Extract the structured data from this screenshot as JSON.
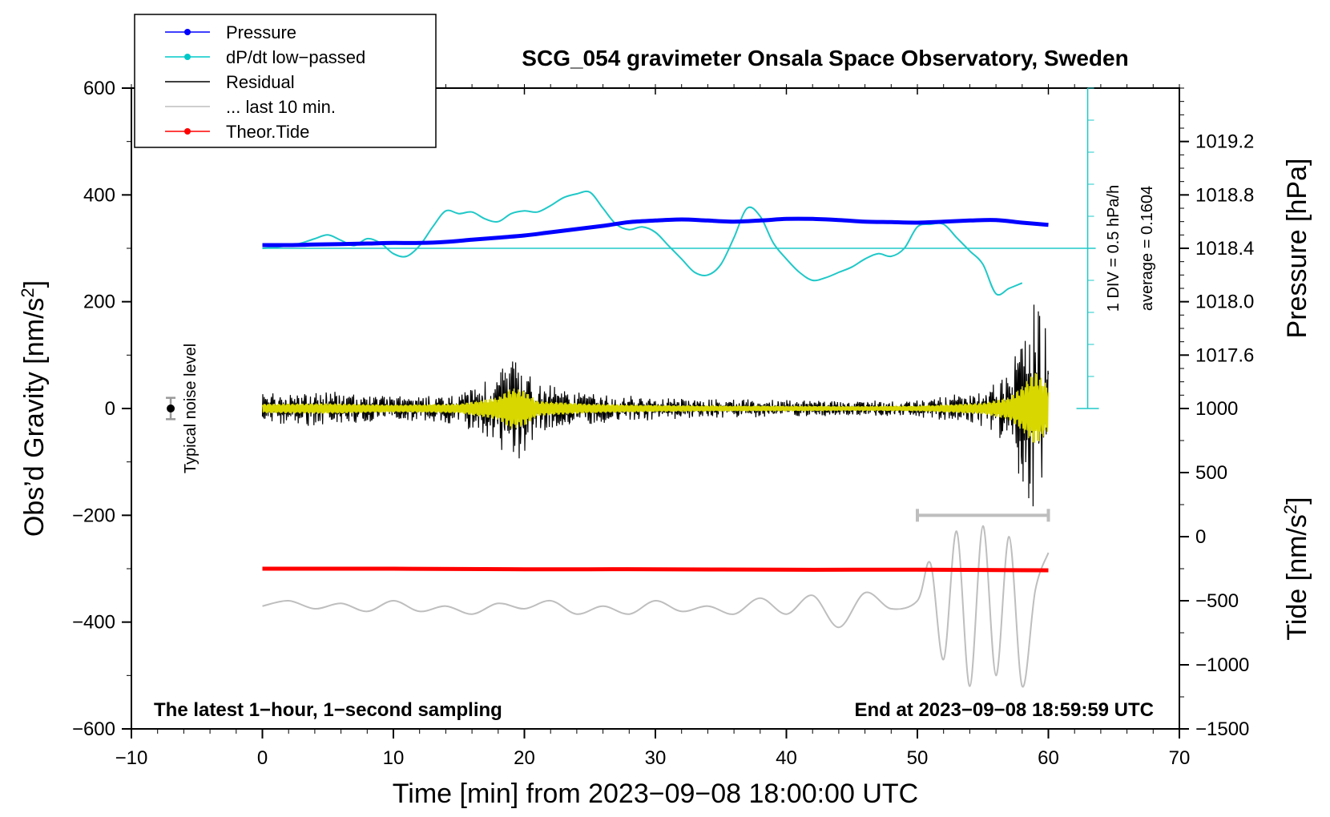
{
  "chart_data": {
    "type": "line",
    "title": "SCG_054 gravimeter Onsala Space Observatory, Sweden",
    "xlabel": "Time [min] from 2023−09−08 18:00:00 UTC",
    "ylabel_left": "Obs’d Gravity [nm/s²]",
    "ylabel_left_text": "Obs’d Gravity [nm/s",
    "ylabel_left_sup": "2",
    "ylabel_left_end": "]",
    "ylabel_pressure": "Pressure [hPa]",
    "ylabel_tide_text": "Tide [nm/s",
    "ylabel_tide_sup": "2",
    "ylabel_tide_end": "]",
    "xlim": [
      -10,
      70
    ],
    "ylim": [
      -600,
      600
    ],
    "x_ticks": [
      -10,
      0,
      10,
      20,
      30,
      40,
      50,
      60,
      70
    ],
    "x_tick_labels": [
      "−10",
      "0",
      "10",
      "20",
      "30",
      "40",
      "50",
      "60",
      "70"
    ],
    "y_ticks": [
      -600,
      -400,
      -200,
      0,
      200,
      400,
      600
    ],
    "y_tick_labels": [
      "−600",
      "−400",
      "−200",
      "0",
      "200",
      "400",
      "600"
    ],
    "pressure_ticks": [
      1017.6,
      1018.0,
      1018.4,
      1018.8,
      1019.2
    ],
    "pressure_tick_labels": [
      "1017.6",
      "1018.0",
      "1018.4",
      "1018.8",
      "1019.2"
    ],
    "pressure_mapping": {
      "value_at_y0": 1017.2,
      "value_at_y600": 1019.6
    },
    "tide_ticks": [
      -1500,
      -1000,
      -500,
      0,
      500,
      1000
    ],
    "tide_tick_labels": [
      "−1500",
      "−1000",
      "−500",
      "0",
      "500",
      "1000"
    ],
    "tide_mapping": {
      "value_at_y_minus600": -1500,
      "value_at_y0": 1000
    },
    "notes": {
      "left": "The latest 1−hour, 1−second sampling",
      "right": "End at 2023−09−08 18:59:59 UTC",
      "div": "1 DIV = 0.5 hPa/h",
      "average": "average = 0.1604",
      "noise": "Typical noise level"
    },
    "noise_marker": {
      "x": -7,
      "y": 0,
      "err": 20
    },
    "last10_bar": {
      "x_start": 50,
      "x_end": 60,
      "y": -200
    },
    "dpdt_scale": {
      "x": 63,
      "y_top": 600,
      "y_bottom": 0,
      "baseline": 300
    },
    "legend": [
      {
        "label": "Pressure",
        "color": "#0000ff",
        "marker": true
      },
      {
        "label": "dP/dt low−passed",
        "color": "#00c8c8",
        "marker": true
      },
      {
        "label": "Residual",
        "color": "#000000",
        "marker": false
      },
      {
        "label": "... last 10 min.",
        "color": "#bebebe",
        "marker": false
      },
      {
        "label": "Theor.Tide",
        "color": "#ff0000",
        "marker": true
      }
    ],
    "colors": {
      "pressure": "#0000ff",
      "dpdt": "#20c8c8",
      "residual": "#000000",
      "filtered": "#d8d800",
      "last10": "#bebebe",
      "tide": "#ff0000"
    },
    "series": [
      {
        "name": "Pressure",
        "x": [
          0,
          2,
          4,
          6,
          8,
          10,
          12,
          14,
          16,
          18,
          20,
          22,
          24,
          26,
          28,
          30,
          32,
          34,
          36,
          38,
          40,
          42,
          44,
          46,
          48,
          50,
          52,
          54,
          56,
          58,
          60
        ],
        "y": [
          306,
          306,
          307,
          308,
          309,
          310,
          310,
          312,
          316,
          320,
          324,
          330,
          336,
          342,
          349,
          352,
          354,
          352,
          350,
          352,
          355,
          355,
          353,
          350,
          349,
          348,
          350,
          352,
          353,
          348,
          344
        ]
      },
      {
        "name": "dP/dt low-passed",
        "x": [
          0,
          1,
          2,
          3,
          4,
          5,
          6,
          7,
          8,
          9,
          10,
          11,
          12,
          13,
          14,
          15,
          16,
          17,
          18,
          19,
          20,
          21,
          22,
          23,
          24,
          25,
          26,
          27,
          28,
          29,
          30,
          31,
          32,
          33,
          34,
          35,
          36,
          37,
          38,
          39,
          40,
          41,
          42,
          43,
          44,
          45,
          46,
          47,
          48,
          49,
          50,
          51,
          52,
          53,
          54,
          55,
          56,
          57,
          58
        ],
        "y": [
          300,
          302,
          305,
          310,
          318,
          325,
          315,
          305,
          318,
          310,
          290,
          285,
          305,
          340,
          370,
          365,
          368,
          355,
          350,
          365,
          370,
          368,
          380,
          395,
          402,
          405,
          375,
          345,
          335,
          340,
          330,
          305,
          280,
          255,
          250,
          270,
          320,
          375,
          360,
          310,
          280,
          255,
          240,
          245,
          255,
          265,
          280,
          290,
          285,
          300,
          340,
          345,
          345,
          320,
          295,
          270,
          215,
          225,
          235
        ]
      },
      {
        "name": "Theor.Tide",
        "x": [
          0,
          10,
          20,
          30,
          40,
          50,
          60
        ],
        "y": [
          -300,
          -300,
          -301,
          -301,
          -302,
          -302,
          -303
        ]
      },
      {
        "name": "... last 10 min.",
        "x": [
          0,
          2,
          4,
          6,
          8,
          10,
          12,
          14,
          16,
          18,
          20,
          22,
          24,
          26,
          28,
          30,
          32,
          34,
          36,
          38,
          40,
          42,
          44,
          46,
          48,
          50,
          51,
          52,
          53,
          54,
          55,
          56,
          57,
          58,
          59,
          60
        ],
        "y": [
          -370,
          -360,
          -375,
          -365,
          -380,
          -360,
          -380,
          -370,
          -385,
          -365,
          -375,
          -360,
          -385,
          -370,
          -385,
          -360,
          -380,
          -370,
          -385,
          -355,
          -385,
          -350,
          -410,
          -345,
          -375,
          -360,
          -290,
          -470,
          -230,
          -520,
          -220,
          -500,
          -240,
          -520,
          -340,
          -270
        ]
      },
      {
        "name": "Residual",
        "description_envelope_x": [
          0,
          5,
          10,
          15,
          18,
          19,
          20,
          21,
          25,
          30,
          35,
          40,
          45,
          50,
          55,
          57,
          58,
          59,
          60
        ],
        "envelope_amplitude": [
          25,
          28,
          20,
          25,
          60,
          110,
          95,
          40,
          25,
          18,
          15,
          14,
          12,
          14,
          30,
          60,
          120,
          200,
          120
        ]
      }
    ]
  }
}
